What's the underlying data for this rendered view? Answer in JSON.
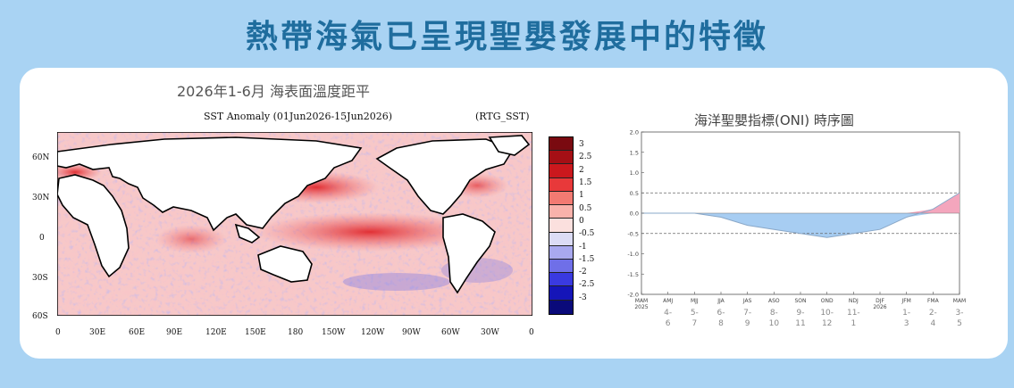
{
  "header": {
    "title": "熱帶海氣已呈現聖嬰發展中的特徵"
  },
  "left_panel": {
    "subtitle": "2026年1-6月 海表面溫度距平",
    "map_title": "SST Anomaly (01Jun2026-15Jun2026)",
    "map_source": "(RTG_SST)",
    "lat_labels": [
      "60N",
      "30N",
      "0",
      "30S",
      "60S"
    ],
    "lon_labels": [
      "0",
      "30E",
      "60E",
      "90E",
      "120E",
      "150E",
      "180",
      "150W",
      "120W",
      "90W",
      "60W",
      "30W",
      "0"
    ],
    "colorbar": {
      "labels": [
        "3",
        "2.5",
        "2",
        "1.5",
        "1",
        "0.5",
        "0",
        "-0.5",
        "-1",
        "-1.5",
        "-2",
        "-2.5",
        "-3"
      ],
      "colors": [
        "#7a0a10",
        "#a50f15",
        "#cb181d",
        "#e8393a",
        "#f27a72",
        "#f9b2ab",
        "#fbe0de",
        "#dcdcf5",
        "#a9a9ef",
        "#6f6fe8",
        "#3a3ae0",
        "#1515b8",
        "#0a0a7a"
      ]
    }
  },
  "right_panel": {
    "title": "海洋聖嬰指標(ONI) 時序圖"
  },
  "chart_data": {
    "type": "area",
    "title": "海洋聖嬰指標(ONI) 時序圖",
    "categories": [
      "MAM",
      "AMJ",
      "MJJ",
      "JJA",
      "JAS",
      "ASO",
      "SON",
      "OND",
      "NDJ",
      "DJF",
      "JFM",
      "FMA",
      "MAM"
    ],
    "year_markers": {
      "MAM": "2025",
      "DJF": "2026"
    },
    "month_labels": [
      "",
      "4-\n6",
      "5-\n7",
      "6-\n8",
      "7-\n9",
      "8-\n10",
      "9-\n11",
      "10-\n12",
      "11-\n1",
      "",
      "1-\n3",
      "2-\n4",
      "3-\n5"
    ],
    "values": [
      0.0,
      0.0,
      0.0,
      -0.1,
      -0.3,
      -0.4,
      -0.5,
      -0.6,
      -0.5,
      -0.4,
      -0.1,
      0.1,
      0.5
    ],
    "ylim": [
      -2.0,
      2.0
    ],
    "yticks": [
      "2.0",
      "1.5",
      "1.0",
      "0.5",
      "0.0",
      "-0.5",
      "-1.0",
      "-1.5",
      "-2.0"
    ],
    "threshold_lines": [
      0.5,
      -0.5
    ],
    "colors": {
      "positive": "#f4a6bd",
      "negative": "#a7cdf2",
      "line": "#8aa8c8"
    }
  }
}
